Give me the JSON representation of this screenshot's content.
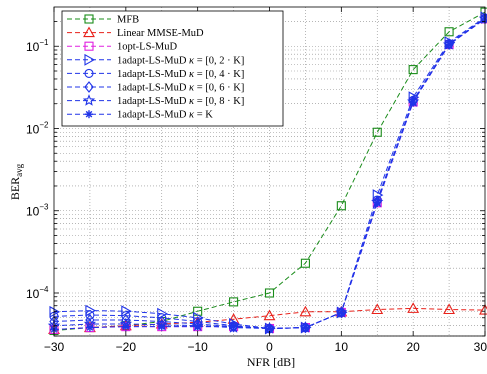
{
  "chart_data": {
    "type": "line",
    "xlabel": "NFR [dB]",
    "ylabel": "BER",
    "ylabel_sub": "avg",
    "xlim": [
      -30,
      30
    ],
    "ylim": [
      3e-05,
      0.3
    ],
    "yscale": "log",
    "grid": true,
    "legend_position": "top-left",
    "x_ticks": [
      -30,
      -20,
      -10,
      0,
      10,
      20,
      30
    ],
    "x_tick_labels": [
      "−30",
      "−20",
      "−10",
      "0",
      "10",
      "20",
      "30"
    ],
    "y_ticks": [
      {
        "value": 0.0001,
        "base": "10",
        "exp": "−4"
      },
      {
        "value": 0.001,
        "base": "10",
        "exp": "−3"
      },
      {
        "value": 0.01,
        "base": "10",
        "exp": "−2"
      },
      {
        "value": 0.1,
        "base": "10",
        "exp": "−1"
      }
    ],
    "x": [
      -30,
      -25,
      -20,
      -15,
      -10,
      -5,
      0,
      5,
      10,
      15,
      20,
      25,
      30
    ],
    "series": [
      {
        "name": "MFB",
        "color": "#1a8c1a",
        "marker": "square",
        "values": [
          3.5e-05,
          3.8e-05,
          4e-05,
          4.5e-05,
          6e-05,
          7.8e-05,
          0.0001,
          0.00023,
          0.00115,
          0.009,
          0.052,
          0.15,
          0.26
        ]
      },
      {
        "name": "Linear MMSE-MuD",
        "color": "#e8211a",
        "marker": "triangle-up",
        "values": [
          3.6e-05,
          3.8e-05,
          4e-05,
          4.2e-05,
          4.4e-05,
          4.8e-05,
          5.3e-05,
          5.9e-05,
          5.9e-05,
          6.3e-05,
          6.5e-05,
          6.3e-05,
          6.2e-05
        ]
      },
      {
        "name": "1opt-LS-MuD",
        "color": "#e020e0",
        "marker": "square",
        "values": [
          3.6e-05,
          3.8e-05,
          3.9e-05,
          3.9e-05,
          3.9e-05,
          3.9e-05,
          3.7e-05,
          3.8e-05,
          5.8e-05,
          0.00125,
          0.021,
          0.105,
          0.215
        ]
      },
      {
        "name": "1adapt-LS-MuD",
        "kappa": "[0, 2 · K]",
        "color": "#2034e8",
        "marker": "triangle-right",
        "values": [
          5.9e-05,
          6.1e-05,
          6e-05,
          5.6e-05,
          5e-05,
          4.2e-05,
          3.7e-05,
          3.8e-05,
          5.8e-05,
          0.00155,
          0.024,
          0.112,
          0.225
        ]
      },
      {
        "name": "1adapt-LS-MuD",
        "kappa": "[0, 4 · K]",
        "color": "#2034e8",
        "marker": "circle",
        "values": [
          5.2e-05,
          5.4e-05,
          5.3e-05,
          5e-05,
          4.5e-05,
          4e-05,
          3.7e-05,
          3.8e-05,
          5.8e-05,
          0.00135,
          0.022,
          0.108,
          0.22
        ]
      },
      {
        "name": "1adapt-LS-MuD",
        "kappa": "[0, 6 · K]",
        "color": "#2034e8",
        "marker": "diamond",
        "values": [
          4.5e-05,
          4.7e-05,
          4.7e-05,
          4.5e-05,
          4.2e-05,
          3.9e-05,
          3.7e-05,
          3.8e-05,
          5.8e-05,
          0.0013,
          0.0215,
          0.106,
          0.218
        ]
      },
      {
        "name": "1adapt-LS-MuD",
        "kappa": "[0, 8 · K]",
        "color": "#2034e8",
        "marker": "star",
        "values": [
          4e-05,
          4.2e-05,
          4.2e-05,
          4.1e-05,
          4e-05,
          3.8e-05,
          3.7e-05,
          3.8e-05,
          5.8e-05,
          0.00128,
          0.0212,
          0.105,
          0.216
        ]
      },
      {
        "name": "1adapt-LS-MuD",
        "kappa": "K",
        "color": "#2034e8",
        "marker": "asterisk",
        "values": [
          3.6e-05,
          3.8e-05,
          3.9e-05,
          3.9e-05,
          3.9e-05,
          3.9e-05,
          3.7e-05,
          3.8e-05,
          5.8e-05,
          0.00125,
          0.021,
          0.105,
          0.215
        ]
      }
    ]
  }
}
